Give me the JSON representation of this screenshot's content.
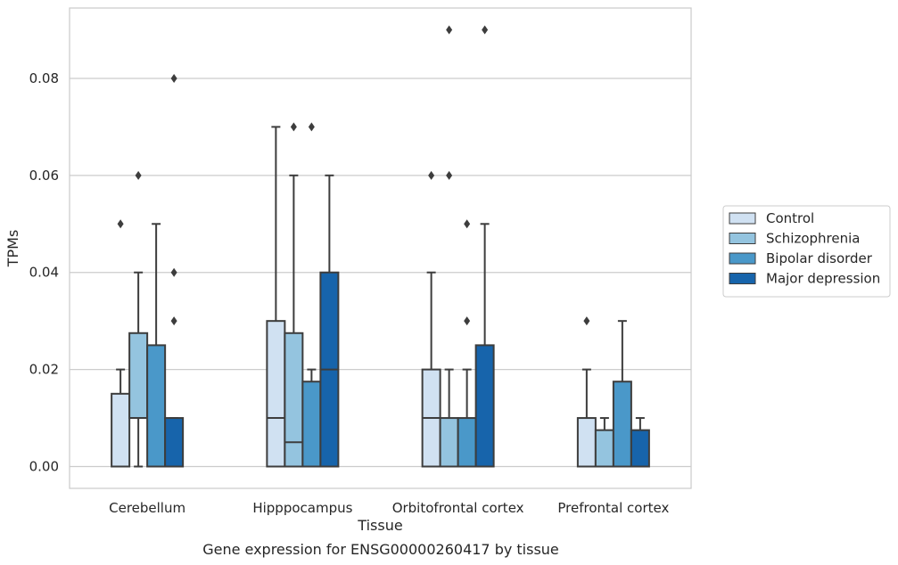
{
  "chart_data": {
    "type": "box",
    "title": "",
    "xlabel": "Tissue",
    "ylabel": "TPMs",
    "caption": "Gene expression for ENSG00000260417 by tissue",
    "ylim": [
      -0.0045,
      0.0945
    ],
    "yticks": [
      "0.00",
      "0.02",
      "0.04",
      "0.06",
      "0.08"
    ],
    "grid": true,
    "legend_placement": "center-right outside",
    "categories": [
      "Cerebellum",
      "Hipppocampus",
      "Orbitofrontal cortex",
      "Prefrontal cortex"
    ],
    "series": [
      {
        "name": "Control",
        "color": "#d0e1f2",
        "boxes": [
          {
            "q1": 0.0,
            "median": 0.0,
            "q3": 0.015,
            "whisker_low": 0.0,
            "whisker_high": 0.02,
            "outliers": [
              0.05
            ]
          },
          {
            "q1": 0.0,
            "median": 0.01,
            "q3": 0.03,
            "whisker_low": 0.0,
            "whisker_high": 0.07,
            "outliers": []
          },
          {
            "q1": 0.0,
            "median": 0.01,
            "q3": 0.02,
            "whisker_low": 0.0,
            "whisker_high": 0.04,
            "outliers": [
              0.06
            ]
          },
          {
            "q1": 0.0,
            "median": 0.0,
            "q3": 0.01,
            "whisker_low": 0.0,
            "whisker_high": 0.02,
            "outliers": [
              0.03
            ]
          }
        ]
      },
      {
        "name": "Schizophrenia",
        "color": "#94c4df",
        "boxes": [
          {
            "q1": 0.01,
            "median": 0.01,
            "q3": 0.0275,
            "whisker_low": 0.0,
            "whisker_high": 0.04,
            "outliers": [
              0.06
            ]
          },
          {
            "q1": 0.0,
            "median": 0.005,
            "q3": 0.0275,
            "whisker_low": 0.0,
            "whisker_high": 0.06,
            "outliers": [
              0.07
            ]
          },
          {
            "q1": 0.0,
            "median": 0.0,
            "q3": 0.01,
            "whisker_low": 0.0,
            "whisker_high": 0.02,
            "outliers": [
              0.06,
              0.09
            ]
          },
          {
            "q1": 0.0,
            "median": 0.0,
            "q3": 0.0075,
            "whisker_low": 0.0,
            "whisker_high": 0.01,
            "outliers": []
          }
        ]
      },
      {
        "name": "Bipolar disorder",
        "color": "#4a98c9",
        "boxes": [
          {
            "q1": 0.0,
            "median": 0.0,
            "q3": 0.025,
            "whisker_low": 0.0,
            "whisker_high": 0.05,
            "outliers": []
          },
          {
            "q1": 0.0,
            "median": 0.0,
            "q3": 0.0175,
            "whisker_low": 0.0,
            "whisker_high": 0.02,
            "outliers": [
              0.07
            ]
          },
          {
            "q1": 0.0,
            "median": 0.0,
            "q3": 0.01,
            "whisker_low": 0.0,
            "whisker_high": 0.02,
            "outliers": [
              0.03,
              0.05
            ]
          },
          {
            "q1": 0.0,
            "median": 0.0,
            "q3": 0.0175,
            "whisker_low": 0.0,
            "whisker_high": 0.03,
            "outliers": []
          }
        ]
      },
      {
        "name": "Major depression",
        "color": "#1764ab",
        "boxes": [
          {
            "q1": 0.0,
            "median": 0.0,
            "q3": 0.01,
            "whisker_low": 0.0,
            "whisker_high": 0.01,
            "outliers": [
              0.03,
              0.04,
              0.08
            ]
          },
          {
            "q1": 0.0,
            "median": 0.02,
            "q3": 0.04,
            "whisker_low": 0.0,
            "whisker_high": 0.06,
            "outliers": []
          },
          {
            "q1": 0.0,
            "median": 0.0,
            "q3": 0.025,
            "whisker_low": 0.0,
            "whisker_high": 0.05,
            "outliers": [
              0.09
            ]
          },
          {
            "q1": 0.0,
            "median": 0.0,
            "q3": 0.0075,
            "whisker_low": 0.0,
            "whisker_high": 0.01,
            "outliers": []
          }
        ]
      }
    ]
  }
}
